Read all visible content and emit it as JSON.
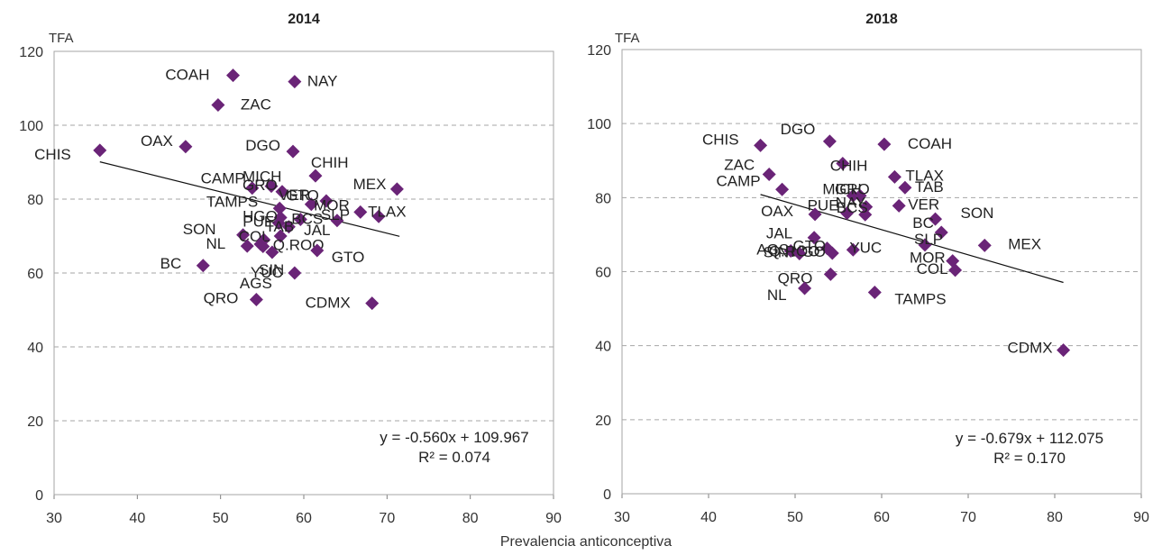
{
  "xlabel": "Prevalencia anticonceptiva",
  "chart_data": [
    {
      "type": "scatter",
      "title": "2014",
      "ylabel": "TFA",
      "xlim": [
        30,
        90
      ],
      "ylim": [
        0,
        120
      ],
      "xticks": [
        30,
        40,
        50,
        60,
        70,
        80,
        90
      ],
      "yticks": [
        0,
        20,
        40,
        60,
        80,
        100,
        120
      ],
      "grid": "horizontal dashed",
      "marker_color": "#6a2477",
      "trendline": {
        "slope": -0.56,
        "intercept": 109.967,
        "x_range": [
          35.5,
          71.5
        ]
      },
      "equation": "y = -0.560x + 109.967",
      "r2": "R² = 0.074",
      "points": [
        {
          "label": "COAH",
          "x": 51.5,
          "y": 113.5
        },
        {
          "label": "NAY",
          "x": 58.9,
          "y": 111.8
        },
        {
          "label": "ZAC",
          "x": 49.7,
          "y": 105.5
        },
        {
          "label": "OAX",
          "x": 45.8,
          "y": 94.2
        },
        {
          "label": "DGO",
          "x": 58.7,
          "y": 92.9
        },
        {
          "label": "CHIS",
          "x": 35.5,
          "y": 93.2
        },
        {
          "label": "CHIH",
          "x": 61.4,
          "y": 86.3
        },
        {
          "label": "CAMP",
          "x": 53.8,
          "y": 83.0
        },
        {
          "label": "MICH",
          "x": 56.1,
          "y": 83.5
        },
        {
          "label": "GRO",
          "x": 57.4,
          "y": 82.0
        },
        {
          "label": "MEX",
          "x": 71.2,
          "y": 82.7
        },
        {
          "label": "VER",
          "x": 62.7,
          "y": 79.5
        },
        {
          "label": "GTO",
          "x": 60.9,
          "y": 78.6
        },
        {
          "label": "TAMPS",
          "x": 57.1,
          "y": 77.5
        },
        {
          "label": "HGO",
          "x": 57.2,
          "y": 75.0
        },
        {
          "label": "PUE",
          "x": 57.0,
          "y": 73.5
        },
        {
          "label": "TAB",
          "x": 58.2,
          "y": 72.5
        },
        {
          "label": "BCS",
          "x": 59.6,
          "y": 74.5
        },
        {
          "label": "SLP",
          "x": 64.0,
          "y": 74.2
        },
        {
          "label": "MOR",
          "x": 66.8,
          "y": 76.5
        },
        {
          "label": "TLAX",
          "x": 69.0,
          "y": 75.3
        },
        {
          "label": "SON",
          "x": 52.7,
          "y": 70.3
        },
        {
          "label": "COL",
          "x": 55.2,
          "y": 69.0
        },
        {
          "label": "NL",
          "x": 53.2,
          "y": 67.3
        },
        {
          "label": "JAL",
          "x": 57.2,
          "y": 70.0
        },
        {
          "label": "Q.ROO",
          "x": 55.1,
          "y": 67.2
        },
        {
          "label": "GTO",
          "x": 61.6,
          "y": 66.1
        },
        {
          "label": "AGS",
          "x": 56.2,
          "y": 65.6
        },
        {
          "label": "BC",
          "x": 47.9,
          "y": 62.0
        },
        {
          "label": "SIN",
          "x": 54.8,
          "y": 67.8
        },
        {
          "label": "YUC",
          "x": 58.9,
          "y": 60.0
        },
        {
          "label": "QRO",
          "x": 54.3,
          "y": 52.8
        },
        {
          "label": "CDMX",
          "x": 68.2,
          "y": 51.8
        }
      ]
    },
    {
      "type": "scatter",
      "title": "2018",
      "ylabel": "TFA",
      "xlim": [
        30,
        90
      ],
      "ylim": [
        0,
        120
      ],
      "xticks": [
        30,
        40,
        50,
        60,
        70,
        80,
        90
      ],
      "yticks": [
        0,
        20,
        40,
        60,
        80,
        100,
        120
      ],
      "grid": "horizontal dashed",
      "marker_color": "#6a2477",
      "trendline": {
        "slope": -0.679,
        "intercept": 112.075,
        "x_range": [
          46.0,
          81.0
        ]
      },
      "equation": "y = -0.679x + 112.075",
      "r2": "R² = 0.170",
      "points": [
        {
          "label": "DGO",
          "x": 54.0,
          "y": 95.2
        },
        {
          "label": "COAH",
          "x": 60.3,
          "y": 94.4
        },
        {
          "label": "CHIS",
          "x": 46.0,
          "y": 94.1
        },
        {
          "label": "CHIH",
          "x": 55.5,
          "y": 89.2
        },
        {
          "label": "ZAC",
          "x": 47.0,
          "y": 86.3
        },
        {
          "label": "TLAX",
          "x": 61.5,
          "y": 85.6
        },
        {
          "label": "TAB",
          "x": 62.7,
          "y": 82.7
        },
        {
          "label": "CAMP",
          "x": 48.5,
          "y": 82.2
        },
        {
          "label": "MICH",
          "x": 56.7,
          "y": 80.5
        },
        {
          "label": "GRO",
          "x": 57.5,
          "y": 80.5
        },
        {
          "label": "VER",
          "x": 62.0,
          "y": 77.8
        },
        {
          "label": "NAY",
          "x": 58.2,
          "y": 77.5
        },
        {
          "label": "OAX",
          "x": 52.3,
          "y": 75.5
        },
        {
          "label": "PUE",
          "x": 56.0,
          "y": 75.8
        },
        {
          "label": "BCS",
          "x": 58.1,
          "y": 75.4
        },
        {
          "label": "SON",
          "x": 66.2,
          "y": 74.2
        },
        {
          "label": "BC",
          "x": 66.9,
          "y": 70.6
        },
        {
          "label": "JAL",
          "x": 52.2,
          "y": 69.2
        },
        {
          "label": "MEX",
          "x": 71.9,
          "y": 67.1
        },
        {
          "label": "AGS",
          "x": 49.5,
          "y": 65.6
        },
        {
          "label": "GTO",
          "x": 53.7,
          "y": 66.3
        },
        {
          "label": "HGO",
          "x": 54.3,
          "y": 65.0
        },
        {
          "label": "SIN",
          "x": 50.5,
          "y": 64.9
        },
        {
          "label": "Q.ROO",
          "x": 50.5,
          "y": 64.9
        },
        {
          "label": "YUC",
          "x": 56.7,
          "y": 65.9
        },
        {
          "label": "SLP",
          "x": 65.0,
          "y": 67.2
        },
        {
          "label": "MOR",
          "x": 68.2,
          "y": 62.9
        },
        {
          "label": "COL",
          "x": 68.5,
          "y": 60.4
        },
        {
          "label": "QRO",
          "x": 54.1,
          "y": 59.3
        },
        {
          "label": "NL",
          "x": 51.1,
          "y": 55.5
        },
        {
          "label": "TAMPS",
          "x": 59.2,
          "y": 54.4
        },
        {
          "label": "CDMX",
          "x": 81.0,
          "y": 38.8
        }
      ]
    }
  ]
}
